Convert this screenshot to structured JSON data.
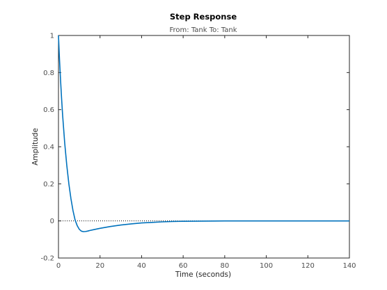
{
  "chart_data": {
    "type": "line",
    "title": "Step Response",
    "subtitle": "From: Tank  To: Tank",
    "xlabel": "Time (seconds)",
    "ylabel": "Amplitude",
    "xlim": [
      0,
      140
    ],
    "ylim": [
      -0.2,
      1
    ],
    "xticks": [
      "0",
      "20",
      "40",
      "60",
      "80",
      "100",
      "120",
      "140"
    ],
    "yticks": [
      "-0.2",
      "0",
      "0.2",
      "0.4",
      "0.6",
      "0.8",
      "1"
    ],
    "reference_line": {
      "y": 0,
      "style": "dotted",
      "color": "#000000"
    },
    "grid": false,
    "series_color": "#0072bd",
    "series": [
      {
        "x": [
          0,
          0.5,
          1,
          1.5,
          2,
          3,
          4,
          5,
          6,
          7,
          8,
          9,
          10,
          11,
          12,
          13,
          14,
          15,
          17,
          20,
          25,
          30,
          35,
          40,
          45,
          50,
          55,
          60,
          70,
          80,
          90,
          100,
          110,
          120,
          130,
          140
        ],
        "values": [
          1.0,
          0.87,
          0.76,
          0.66,
          0.57,
          0.42,
          0.3,
          0.2,
          0.12,
          0.055,
          0.005,
          -0.025,
          -0.045,
          -0.055,
          -0.058,
          -0.057,
          -0.055,
          -0.052,
          -0.047,
          -0.04,
          -0.03,
          -0.022,
          -0.016,
          -0.011,
          -0.008,
          -0.005,
          -0.003,
          -0.002,
          -0.001,
          0.0,
          0.0,
          0.0,
          0.0,
          0.0,
          0.0,
          0.0
        ]
      }
    ]
  }
}
